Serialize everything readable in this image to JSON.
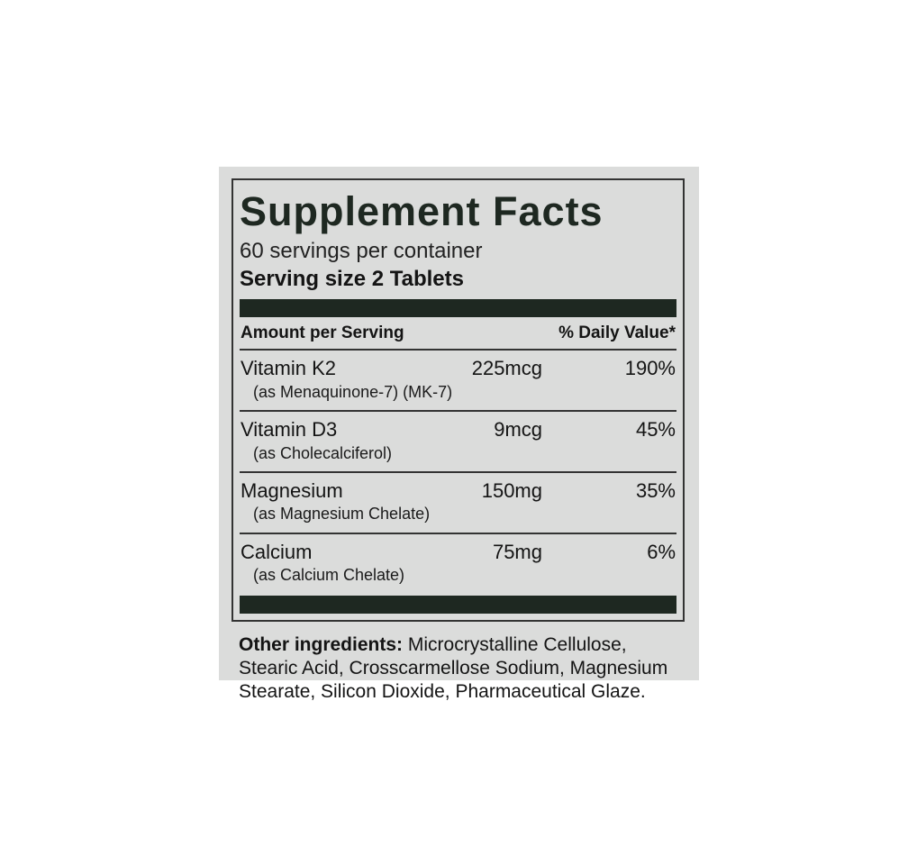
{
  "panel": {
    "title": "Supplement Facts",
    "servings_per_container": "60 servings per container",
    "serving_size": "Serving size 2 Tablets",
    "columns": {
      "amount_header": "Amount per Serving",
      "daily_value_header": "% Daily Value*"
    },
    "rows": [
      {
        "name": "Vitamin K2",
        "detail": "(as Menaquinone-7) (MK-7)",
        "amount": "225mcg",
        "daily_value": "190%"
      },
      {
        "name": "Vitamin D3",
        "detail": "(as Cholecalciferol)",
        "amount": "9mcg",
        "daily_value": "45%"
      },
      {
        "name": "Magnesium",
        "detail": "(as Magnesium Chelate)",
        "amount": "150mg",
        "daily_value": "35%"
      },
      {
        "name": "Calcium",
        "detail": "(as Calcium Chelate)",
        "amount": "75mg",
        "daily_value": "6%"
      }
    ],
    "other_ingredients_label": "Other ingredients:",
    "other_ingredients_text": " Microcrystalline Cellulose, Stearic Acid, Crosscarmellose Sodium, Magnesium Stearate, Silicon Dioxide, Pharmaceutical Glaze."
  },
  "colors": {
    "page_bg": "#ffffff",
    "panel_bg": "#dbdcdb",
    "ink": "#1e2821",
    "text": "#1f1f1f",
    "line": "#333333"
  }
}
